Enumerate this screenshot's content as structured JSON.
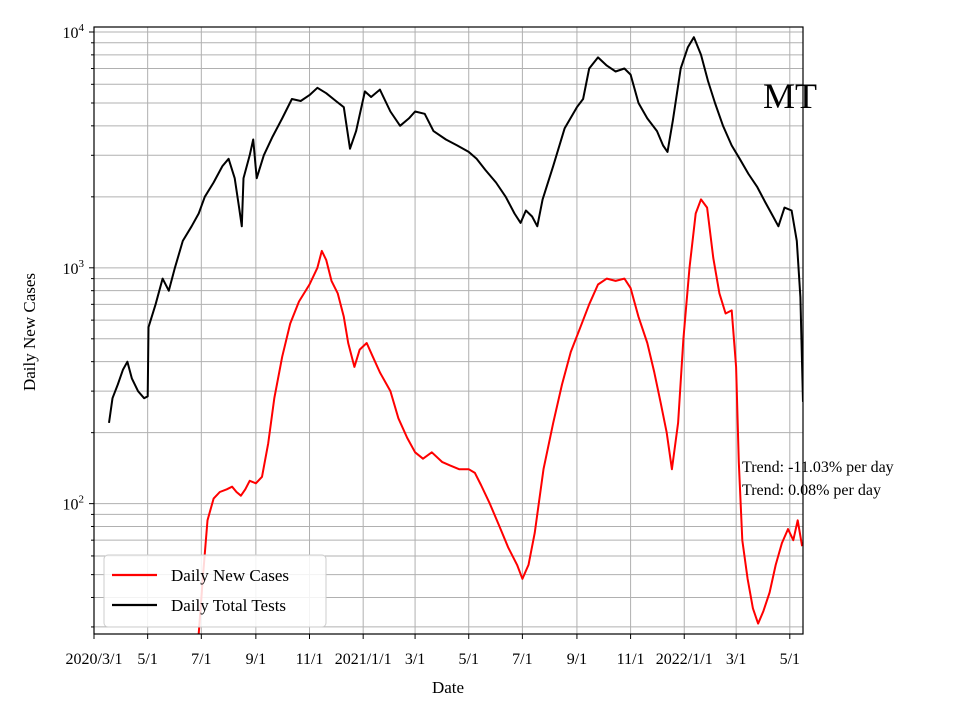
{
  "chart_data": {
    "type": "line",
    "title": "",
    "state_label": "MT",
    "xlabel": "Date",
    "ylabel": "Daily New Cases",
    "y_scale": "log",
    "ylim": [
      28,
      10500
    ],
    "xlim": [
      "2020-03-01",
      "2022-05-16"
    ],
    "grid": true,
    "legend_position": "lower-left",
    "x_ticks": [
      {
        "date": "2020-03-01",
        "label": "2020/3/1"
      },
      {
        "date": "2020-05-01",
        "label": "5/1"
      },
      {
        "date": "2020-07-01",
        "label": "7/1"
      },
      {
        "date": "2020-09-01",
        "label": "9/1"
      },
      {
        "date": "2020-11-01",
        "label": "11/1"
      },
      {
        "date": "2021-01-01",
        "label": "2021/1/1"
      },
      {
        "date": "2021-03-01",
        "label": "3/1"
      },
      {
        "date": "2021-05-01",
        "label": "5/1"
      },
      {
        "date": "2021-07-01",
        "label": "7/1"
      },
      {
        "date": "2021-09-01",
        "label": "9/1"
      },
      {
        "date": "2021-11-01",
        "label": "11/1"
      },
      {
        "date": "2022-01-01",
        "label": "2022/1/1"
      },
      {
        "date": "2022-03-01",
        "label": "3/1"
      },
      {
        "date": "2022-05-01",
        "label": "5/1"
      }
    ],
    "y_ticks": [
      {
        "value": 100,
        "base": "10",
        "exp": "2"
      },
      {
        "value": 1000,
        "base": "10",
        "exp": "3"
      },
      {
        "value": 10000,
        "base": "10",
        "exp": "4"
      }
    ],
    "annotations": [
      {
        "text": "Trend: -11.03% per day"
      },
      {
        "text": "Trend: 0.08% per day"
      }
    ],
    "series": [
      {
        "name": "Daily New Cases",
        "color": "#ff0000",
        "points": [
          [
            "2020-06-28",
            28
          ],
          [
            "2020-07-03",
            50
          ],
          [
            "2020-07-08",
            85
          ],
          [
            "2020-07-15",
            105
          ],
          [
            "2020-07-22",
            112
          ],
          [
            "2020-07-30",
            115
          ],
          [
            "2020-08-05",
            118
          ],
          [
            "2020-08-10",
            112
          ],
          [
            "2020-08-15",
            108
          ],
          [
            "2020-08-20",
            115
          ],
          [
            "2020-08-25",
            125
          ],
          [
            "2020-09-01",
            122
          ],
          [
            "2020-09-08",
            130
          ],
          [
            "2020-09-15",
            180
          ],
          [
            "2020-09-22",
            280
          ],
          [
            "2020-10-01",
            420
          ],
          [
            "2020-10-10",
            580
          ],
          [
            "2020-10-20",
            720
          ],
          [
            "2020-11-01",
            850
          ],
          [
            "2020-11-10",
            1000
          ],
          [
            "2020-11-15",
            1180
          ],
          [
            "2020-11-20",
            1080
          ],
          [
            "2020-11-26",
            880
          ],
          [
            "2020-12-03",
            780
          ],
          [
            "2020-12-10",
            620
          ],
          [
            "2020-12-15",
            480
          ],
          [
            "2020-12-22",
            380
          ],
          [
            "2020-12-28",
            450
          ],
          [
            "2021-01-05",
            480
          ],
          [
            "2021-01-12",
            420
          ],
          [
            "2021-01-20",
            360
          ],
          [
            "2021-02-01",
            300
          ],
          [
            "2021-02-10",
            230
          ],
          [
            "2021-02-20",
            190
          ],
          [
            "2021-03-01",
            165
          ],
          [
            "2021-03-10",
            155
          ],
          [
            "2021-03-20",
            165
          ],
          [
            "2021-04-01",
            150
          ],
          [
            "2021-04-10",
            145
          ],
          [
            "2021-04-20",
            140
          ],
          [
            "2021-05-01",
            140
          ],
          [
            "2021-05-08",
            135
          ],
          [
            "2021-05-15",
            120
          ],
          [
            "2021-05-25",
            100
          ],
          [
            "2021-06-05",
            80
          ],
          [
            "2021-06-15",
            65
          ],
          [
            "2021-06-25",
            55
          ],
          [
            "2021-07-01",
            48
          ],
          [
            "2021-07-08",
            55
          ],
          [
            "2021-07-15",
            75
          ],
          [
            "2021-07-25",
            140
          ],
          [
            "2021-08-05",
            220
          ],
          [
            "2021-08-15",
            320
          ],
          [
            "2021-08-25",
            440
          ],
          [
            "2021-09-05",
            560
          ],
          [
            "2021-09-15",
            700
          ],
          [
            "2021-09-25",
            850
          ],
          [
            "2021-10-05",
            900
          ],
          [
            "2021-10-15",
            880
          ],
          [
            "2021-10-25",
            900
          ],
          [
            "2021-11-01",
            820
          ],
          [
            "2021-11-10",
            620
          ],
          [
            "2021-11-20",
            480
          ],
          [
            "2021-11-28",
            360
          ],
          [
            "2021-12-05",
            270
          ],
          [
            "2021-12-12",
            200
          ],
          [
            "2021-12-18",
            140
          ],
          [
            "2021-12-25",
            220
          ],
          [
            "2021-12-31",
            500
          ],
          [
            "2022-01-07",
            1000
          ],
          [
            "2022-01-14",
            1700
          ],
          [
            "2022-01-20",
            1950
          ],
          [
            "2022-01-27",
            1800
          ],
          [
            "2022-02-03",
            1100
          ],
          [
            "2022-02-10",
            780
          ],
          [
            "2022-02-17",
            640
          ],
          [
            "2022-02-24",
            660
          ],
          [
            "2022-03-01",
            380
          ],
          [
            "2022-03-04",
            150
          ],
          [
            "2022-03-08",
            70
          ],
          [
            "2022-03-14",
            48
          ],
          [
            "2022-03-20",
            36
          ],
          [
            "2022-03-26",
            31
          ],
          [
            "2022-04-01",
            35
          ],
          [
            "2022-04-08",
            42
          ],
          [
            "2022-04-15",
            55
          ],
          [
            "2022-04-22",
            68
          ],
          [
            "2022-04-29",
            78
          ],
          [
            "2022-05-05",
            70
          ],
          [
            "2022-05-10",
            85
          ],
          [
            "2022-05-15",
            66
          ]
        ]
      },
      {
        "name": "Daily Total Tests",
        "color": "#000000",
        "points": [
          [
            "2020-03-18",
            220
          ],
          [
            "2020-03-22",
            280
          ],
          [
            "2020-03-28",
            320
          ],
          [
            "2020-04-03",
            370
          ],
          [
            "2020-04-08",
            400
          ],
          [
            "2020-04-13",
            340
          ],
          [
            "2020-04-20",
            300
          ],
          [
            "2020-04-27",
            280
          ],
          [
            "2020-05-01",
            285
          ],
          [
            "2020-05-02",
            560
          ],
          [
            "2020-05-10",
            700
          ],
          [
            "2020-05-18",
            900
          ],
          [
            "2020-05-25",
            800
          ],
          [
            "2020-06-01",
            1000
          ],
          [
            "2020-06-10",
            1300
          ],
          [
            "2020-06-20",
            1500
          ],
          [
            "2020-06-28",
            1700
          ],
          [
            "2020-07-05",
            2000
          ],
          [
            "2020-07-15",
            2300
          ],
          [
            "2020-07-25",
            2700
          ],
          [
            "2020-08-01",
            2900
          ],
          [
            "2020-08-08",
            2400
          ],
          [
            "2020-08-13",
            1800
          ],
          [
            "2020-08-16",
            1500
          ],
          [
            "2020-08-18",
            2400
          ],
          [
            "2020-08-25",
            3000
          ],
          [
            "2020-08-29",
            3500
          ],
          [
            "2020-09-02",
            2400
          ],
          [
            "2020-09-10",
            3000
          ],
          [
            "2020-09-20",
            3600
          ],
          [
            "2020-10-01",
            4300
          ],
          [
            "2020-10-12",
            5200
          ],
          [
            "2020-10-22",
            5100
          ],
          [
            "2020-11-01",
            5400
          ],
          [
            "2020-11-10",
            5800
          ],
          [
            "2020-11-20",
            5500
          ],
          [
            "2020-12-01",
            5100
          ],
          [
            "2020-12-10",
            4800
          ],
          [
            "2020-12-17",
            3200
          ],
          [
            "2020-12-24",
            3800
          ],
          [
            "2021-01-03",
            5600
          ],
          [
            "2021-01-10",
            5300
          ],
          [
            "2021-01-20",
            5700
          ],
          [
            "2021-02-01",
            4600
          ],
          [
            "2021-02-12",
            4000
          ],
          [
            "2021-02-22",
            4300
          ],
          [
            "2021-03-01",
            4600
          ],
          [
            "2021-03-12",
            4500
          ],
          [
            "2021-03-22",
            3800
          ],
          [
            "2021-04-05",
            3500
          ],
          [
            "2021-04-18",
            3300
          ],
          [
            "2021-05-01",
            3100
          ],
          [
            "2021-05-10",
            2900
          ],
          [
            "2021-05-20",
            2600
          ],
          [
            "2021-06-01",
            2300
          ],
          [
            "2021-06-12",
            2000
          ],
          [
            "2021-06-22",
            1700
          ],
          [
            "2021-06-29",
            1550
          ],
          [
            "2021-07-05",
            1750
          ],
          [
            "2021-07-12",
            1650
          ],
          [
            "2021-07-18",
            1500
          ],
          [
            "2021-07-24",
            1950
          ],
          [
            "2021-08-05",
            2700
          ],
          [
            "2021-08-18",
            3900
          ],
          [
            "2021-09-01",
            4800
          ],
          [
            "2021-09-08",
            5200
          ],
          [
            "2021-09-15",
            7000
          ],
          [
            "2021-09-25",
            7800
          ],
          [
            "2021-10-05",
            7200
          ],
          [
            "2021-10-15",
            6800
          ],
          [
            "2021-10-25",
            7000
          ],
          [
            "2021-11-01",
            6600
          ],
          [
            "2021-11-10",
            5000
          ],
          [
            "2021-11-20",
            4300
          ],
          [
            "2021-12-01",
            3800
          ],
          [
            "2021-12-08",
            3300
          ],
          [
            "2021-12-13",
            3100
          ],
          [
            "2021-12-19",
            4200
          ],
          [
            "2021-12-28",
            7000
          ],
          [
            "2022-01-05",
            8600
          ],
          [
            "2022-01-12",
            9500
          ],
          [
            "2022-01-20",
            8000
          ],
          [
            "2022-01-28",
            6200
          ],
          [
            "2022-02-05",
            5000
          ],
          [
            "2022-02-14",
            4000
          ],
          [
            "2022-02-24",
            3300
          ],
          [
            "2022-03-05",
            2900
          ],
          [
            "2022-03-15",
            2500
          ],
          [
            "2022-03-25",
            2200
          ],
          [
            "2022-04-03",
            1900
          ],
          [
            "2022-04-12",
            1650
          ],
          [
            "2022-04-18",
            1500
          ],
          [
            "2022-04-25",
            1800
          ],
          [
            "2022-05-03",
            1750
          ],
          [
            "2022-05-09",
            1300
          ],
          [
            "2022-05-13",
            750
          ],
          [
            "2022-05-16",
            270
          ]
        ]
      }
    ]
  }
}
